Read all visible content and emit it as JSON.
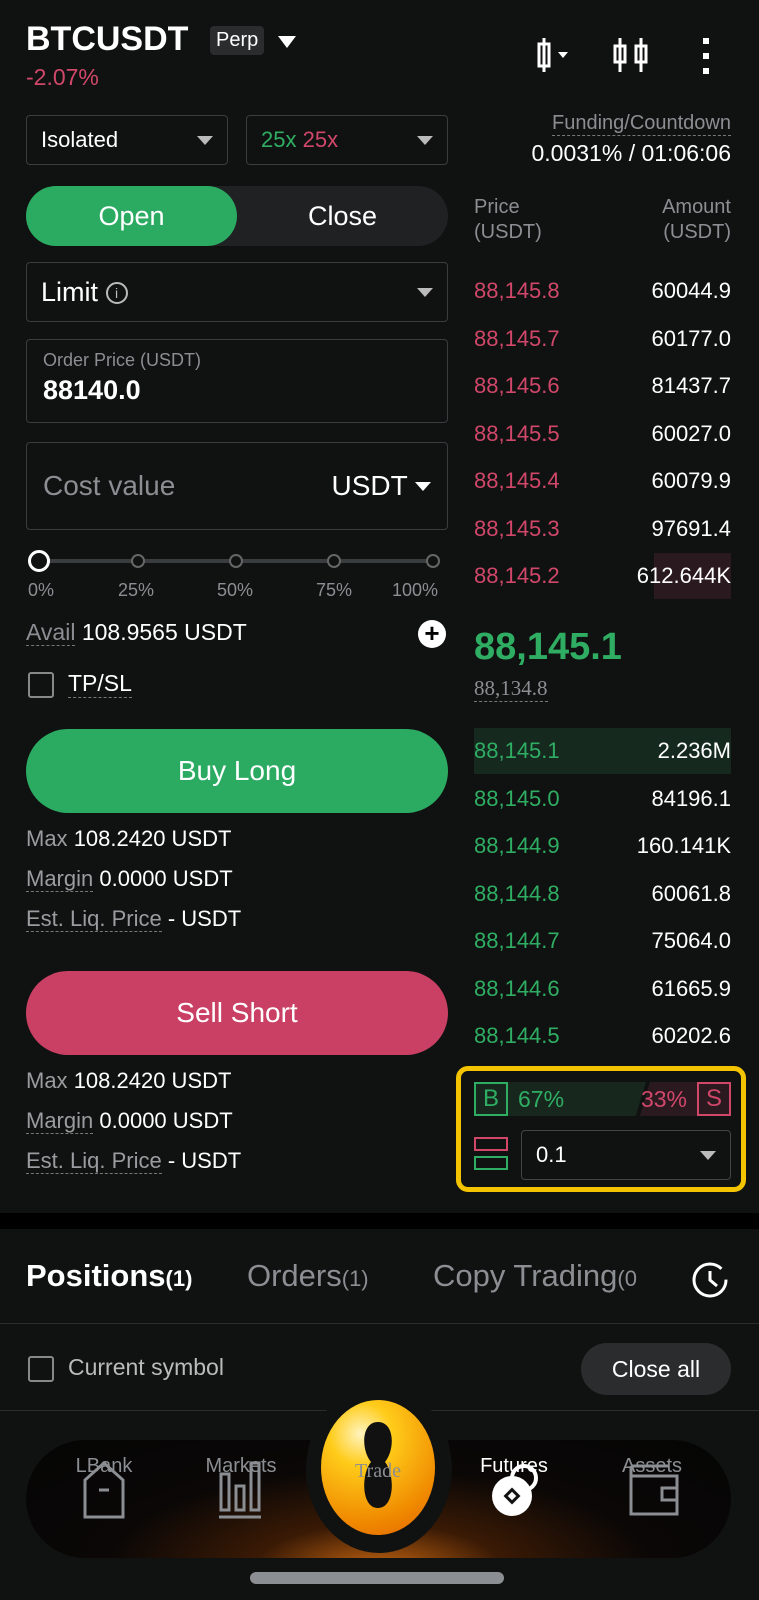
{
  "header": {
    "symbol": "BTCUSDT",
    "type_badge": "Perp",
    "change": "-2.07%"
  },
  "controls": {
    "margin_mode": "Isolated",
    "leverage_long": "25x",
    "leverage_short": "25x",
    "funding_label": "Funding/Countdown",
    "funding_value": "0.0031% / 01:06:06"
  },
  "toggle": {
    "open": "Open",
    "close": "Close",
    "active": "open"
  },
  "order": {
    "type": "Limit",
    "price_label": "Order Price (USDT)",
    "price_value": "88140.0",
    "cost_placeholder": "Cost value",
    "cost_unit": "USDT",
    "slider_marks": [
      "0%",
      "25%",
      "50%",
      "75%",
      "100%"
    ],
    "slider_value": 0,
    "avail_label": "Avail",
    "avail_value": "108.9565 USDT",
    "tpsl": "TP/SL"
  },
  "buy": {
    "label": "Buy Long",
    "max_k": "Max",
    "max_v": "108.2420 USDT",
    "margin_k": "Margin",
    "margin_v": "0.0000 USDT",
    "liq_k": "Est. Liq. Price",
    "liq_v": "- USDT"
  },
  "sell": {
    "label": "Sell Short",
    "max_k": "Max",
    "max_v": "108.2420 USDT",
    "margin_k": "Margin",
    "margin_v": "0.0000 USDT",
    "liq_k": "Est. Liq. Price",
    "liq_v": "- USDT"
  },
  "orderbook": {
    "price_header": [
      "Price",
      "(USDT)"
    ],
    "amount_header": [
      "Amount",
      "(USDT)"
    ],
    "asks": [
      [
        "88,145.8",
        "60044.9"
      ],
      [
        "88,145.7",
        "60177.0"
      ],
      [
        "88,145.6",
        "81437.7"
      ],
      [
        "88,145.5",
        "60027.0"
      ],
      [
        "88,145.4",
        "60079.9"
      ],
      [
        "88,145.3",
        "97691.4"
      ],
      [
        "88,145.2",
        "612.644K"
      ]
    ],
    "last_price": "88,145.1",
    "mark_price": "88,134.8",
    "bids": [
      [
        "88,145.1",
        "2.236M"
      ],
      [
        "88,145.0",
        "84196.1"
      ],
      [
        "88,144.9",
        "160.141K"
      ],
      [
        "88,144.8",
        "60061.8"
      ],
      [
        "88,144.7",
        "75064.0"
      ],
      [
        "88,144.6",
        "61665.9"
      ],
      [
        "88,144.5",
        "60202.6"
      ]
    ],
    "buy_ratio": "67%",
    "sell_ratio": "33%",
    "buy_letter": "B",
    "sell_letter": "S",
    "precision": "0.1"
  },
  "tabs": [
    {
      "label": "Positions",
      "count": "(1)"
    },
    {
      "label": "Orders",
      "count": "(1)"
    },
    {
      "label": "Copy Trading",
      "count": "(0"
    }
  ],
  "positions": {
    "current_symbol": "Current symbol",
    "close_all": "Close all"
  },
  "nav": [
    "LBank",
    "Markets",
    "Trade",
    "Futures",
    "Assets"
  ],
  "colors": {
    "green": "#2fae63",
    "red": "#d0476a",
    "highlight": "#f5c400"
  }
}
